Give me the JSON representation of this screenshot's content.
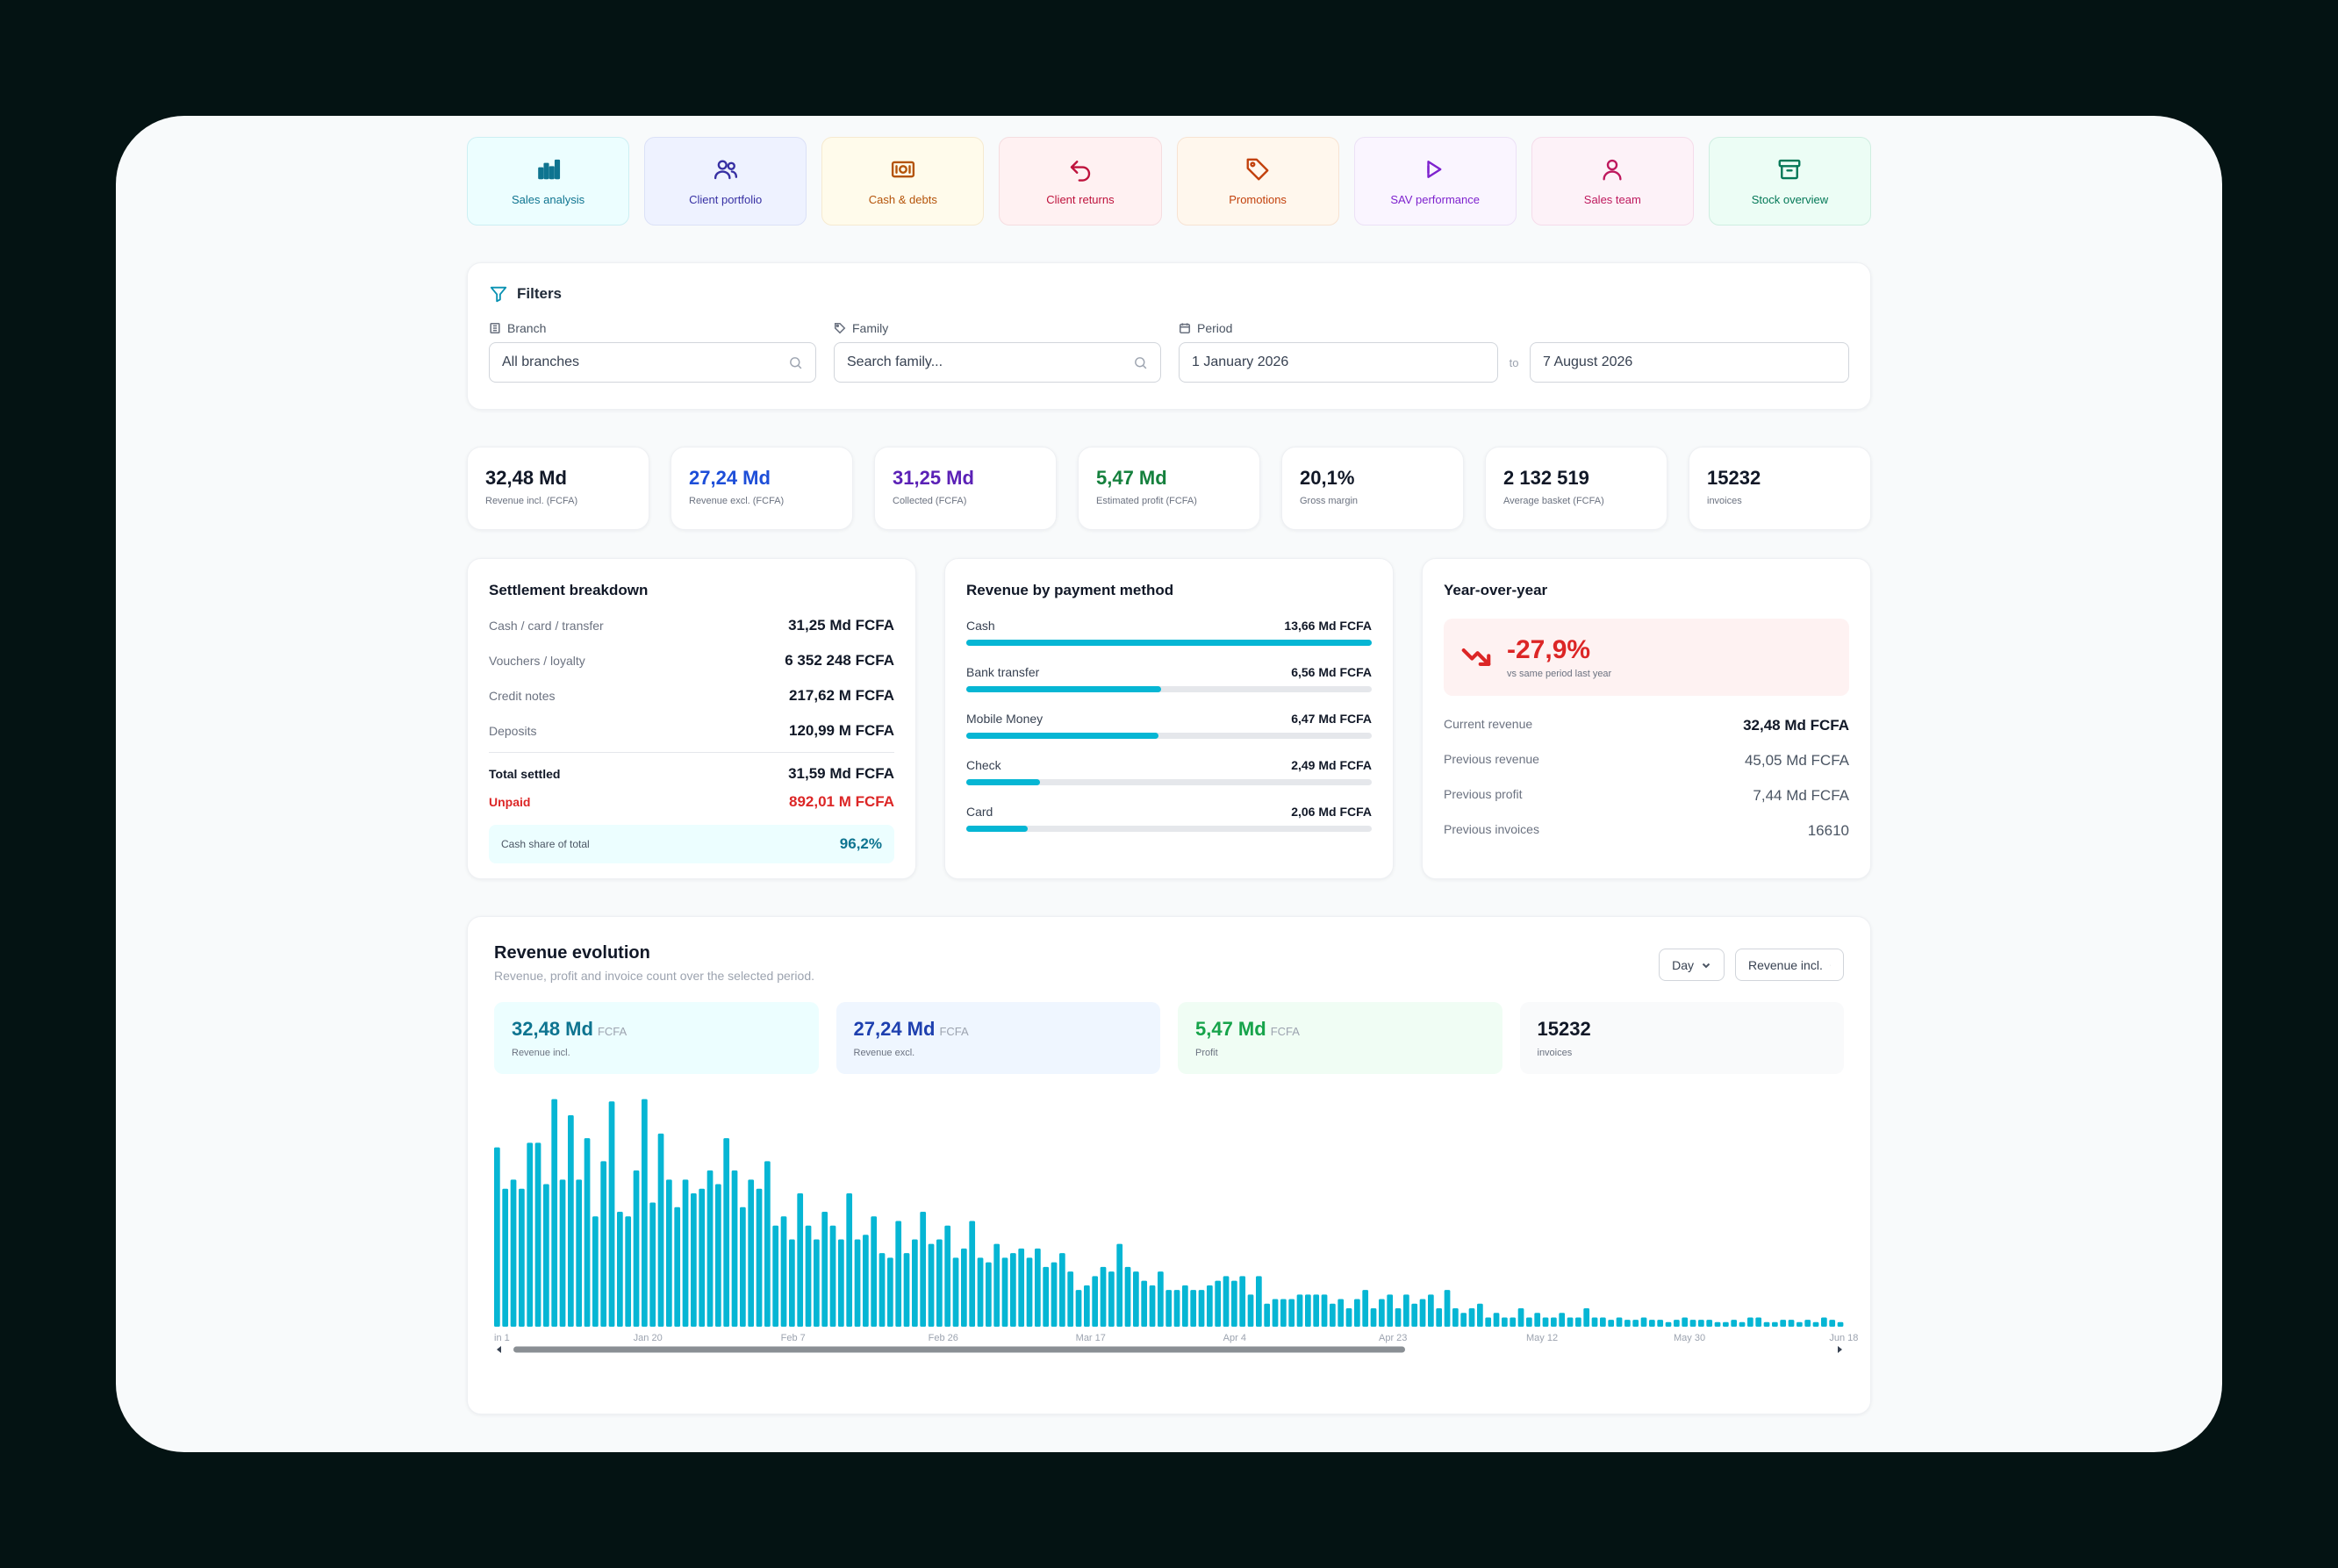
{
  "modules": [
    {
      "label": "Sales analysis",
      "icon": "bar-chart-icon",
      "color": "#0e7490",
      "bg": "#ecfeff",
      "border": "#cdeff3"
    },
    {
      "label": "Client portfolio",
      "icon": "users-icon",
      "color": "#3730a3",
      "bg": "#eef2ff",
      "border": "#dbe1f7"
    },
    {
      "label": "Cash & debts",
      "icon": "banknote-icon",
      "color": "#b45309",
      "bg": "#fffbeb",
      "border": "#f6ead0"
    },
    {
      "label": "Client returns",
      "icon": "undo-icon",
      "color": "#be123c",
      "bg": "#fff1f2",
      "border": "#f5dde0"
    },
    {
      "label": "Promotions",
      "icon": "tag-icon",
      "color": "#c2410c",
      "bg": "#fff7ed",
      "border": "#f7e3d2"
    },
    {
      "label": "SAV performance",
      "icon": "play-icon",
      "color": "#7e22ce",
      "bg": "#faf5ff",
      "border": "#ece1f6"
    },
    {
      "label": "Sales team",
      "icon": "user-icon",
      "color": "#be185d",
      "bg": "#fdf2f8",
      "border": "#f5dcea"
    },
    {
      "label": "Stock overview",
      "icon": "archive-icon",
      "color": "#047857",
      "bg": "#ecfdf5",
      "border": "#cfeee1"
    }
  ],
  "filters": {
    "title": "Filters",
    "branch": {
      "label": "Branch",
      "value": "All branches"
    },
    "family": {
      "label": "Family",
      "placeholder": "Search family..."
    },
    "period": {
      "label": "Period",
      "from": "1 January 2026",
      "separator": "to",
      "to": "7 August 2026"
    }
  },
  "kpis": [
    {
      "value": "32,48 Md",
      "label": "Revenue incl. (FCFA)",
      "color": "#111827"
    },
    {
      "value": "27,24 Md",
      "label": "Revenue excl. (FCFA)",
      "color": "#1d4ed8"
    },
    {
      "value": "31,25 Md",
      "label": "Collected (FCFA)",
      "color": "#5b21b6"
    },
    {
      "value": "5,47 Md",
      "label": "Estimated profit (FCFA)",
      "color": "#15803d"
    },
    {
      "value": "20,1%",
      "label": "Gross margin",
      "color": "#111827"
    },
    {
      "value": "2 132 519",
      "label": "Average basket (FCFA)",
      "color": "#111827"
    },
    {
      "value": "15232",
      "label": "invoices",
      "color": "#111827"
    }
  ],
  "settlement": {
    "title": "Settlement breakdown",
    "rows": [
      {
        "label": "Cash / card / transfer",
        "value": "31,25 Md FCFA"
      },
      {
        "label": "Vouchers / loyalty",
        "value": "6 352 248 FCFA"
      },
      {
        "label": "Credit notes",
        "value": "217,62 M FCFA"
      },
      {
        "label": "Deposits",
        "value": "120,99 M FCFA"
      }
    ],
    "total": {
      "label": "Total settled",
      "value": "31,59 Md FCFA"
    },
    "unpaid": {
      "label": "Unpaid",
      "value": "892,01 M FCFA"
    },
    "cash_share": {
      "label": "Cash share of total",
      "value": "96,2%"
    }
  },
  "payment_methods": {
    "title": "Revenue by payment method",
    "items": [
      {
        "label": "Cash",
        "value": "13,66 Md FCFA",
        "share": 1.0
      },
      {
        "label": "Bank transfer",
        "value": "6,56 Md FCFA",
        "share": 0.48
      },
      {
        "label": "Mobile Money",
        "value": "6,47 Md FCFA",
        "share": 0.474
      },
      {
        "label": "Check",
        "value": "2,49 Md FCFA",
        "share": 0.182
      },
      {
        "label": "Card",
        "value": "2,06 Md FCFA",
        "share": 0.151
      }
    ]
  },
  "yoy": {
    "title": "Year-over-year",
    "change": "-27,9%",
    "change_caption": "vs same period last year",
    "rows": [
      {
        "label": "Current revenue",
        "value": "32,48 Md FCFA",
        "strong": true
      },
      {
        "label": "Previous revenue",
        "value": "45,05 Md FCFA",
        "strong": false
      },
      {
        "label": "Previous profit",
        "value": "7,44 Md FCFA",
        "strong": false
      },
      {
        "label": "Previous invoices",
        "value": "16610",
        "strong": false
      }
    ]
  },
  "evolution": {
    "title": "Revenue evolution",
    "subtitle": "Revenue, profit and invoice count over the selected period.",
    "granularity": "Day",
    "metric": "Revenue incl.",
    "summary": [
      {
        "value": "32,48 Md",
        "unit": "FCFA",
        "label": "Revenue incl.",
        "color": "#0e7490",
        "bg": "#ecfeff"
      },
      {
        "value": "27,24 Md",
        "unit": "FCFA",
        "label": "Revenue excl.",
        "color": "#1e40af",
        "bg": "#eff6ff"
      },
      {
        "value": "5,47 Md",
        "unit": "FCFA",
        "label": "Profit",
        "color": "#16a34a",
        "bg": "#f0fdf4"
      },
      {
        "value": "15232",
        "unit": "",
        "label": "invoices",
        "color": "#111827",
        "bg": "#f9fafb"
      }
    ]
  },
  "chart_data": {
    "type": "bar",
    "title": "",
    "xlabel": "",
    "ylabel": "",
    "color": "#06b6d4",
    "x_tick_labels": [
      "in 1",
      "Jan 20",
      "Feb 7",
      "Feb 26",
      "Mar 17",
      "Apr 4",
      "Apr 23",
      "May 12",
      "May 30",
      "Jun 18"
    ],
    "x_tick_index": [
      0,
      17,
      35,
      53,
      71,
      89,
      108,
      126,
      144,
      163
    ],
    "values": [
      0.78,
      0.6,
      0.64,
      0.6,
      0.8,
      0.8,
      0.62,
      0.99,
      0.64,
      0.92,
      0.64,
      0.82,
      0.48,
      0.72,
      0.98,
      0.5,
      0.48,
      0.68,
      0.99,
      0.54,
      0.84,
      0.64,
      0.52,
      0.64,
      0.58,
      0.6,
      0.68,
      0.62,
      0.82,
      0.68,
      0.52,
      0.64,
      0.6,
      0.72,
      0.44,
      0.48,
      0.38,
      0.58,
      0.44,
      0.38,
      0.5,
      0.44,
      0.38,
      0.58,
      0.38,
      0.4,
      0.48,
      0.32,
      0.3,
      0.46,
      0.32,
      0.38,
      0.5,
      0.36,
      0.38,
      0.44,
      0.3,
      0.34,
      0.46,
      0.3,
      0.28,
      0.36,
      0.3,
      0.32,
      0.34,
      0.3,
      0.34,
      0.26,
      0.28,
      0.32,
      0.24,
      0.16,
      0.18,
      0.22,
      0.26,
      0.24,
      0.36,
      0.26,
      0.24,
      0.2,
      0.18,
      0.24,
      0.16,
      0.16,
      0.18,
      0.16,
      0.16,
      0.18,
      0.2,
      0.22,
      0.2,
      0.22,
      0.14,
      0.22,
      0.1,
      0.12,
      0.12,
      0.12,
      0.14,
      0.14,
      0.14,
      0.14,
      0.1,
      0.12,
      0.08,
      0.12,
      0.16,
      0.08,
      0.12,
      0.14,
      0.08,
      0.14,
      0.1,
      0.12,
      0.14,
      0.08,
      0.16,
      0.08,
      0.06,
      0.08,
      0.1,
      0.04,
      0.06,
      0.04,
      0.04,
      0.08,
      0.04,
      0.06,
      0.04,
      0.04,
      0.06,
      0.04,
      0.04,
      0.08,
      0.04,
      0.04,
      0.03,
      0.04,
      0.03,
      0.03,
      0.04,
      0.03,
      0.03,
      0.02,
      0.03,
      0.04,
      0.03,
      0.03,
      0.03,
      0.02,
      0.02,
      0.03,
      0.02,
      0.04,
      0.04,
      0.02,
      0.02,
      0.03,
      0.03,
      0.02,
      0.03,
      0.02,
      0.04,
      0.03,
      0.02
    ]
  }
}
